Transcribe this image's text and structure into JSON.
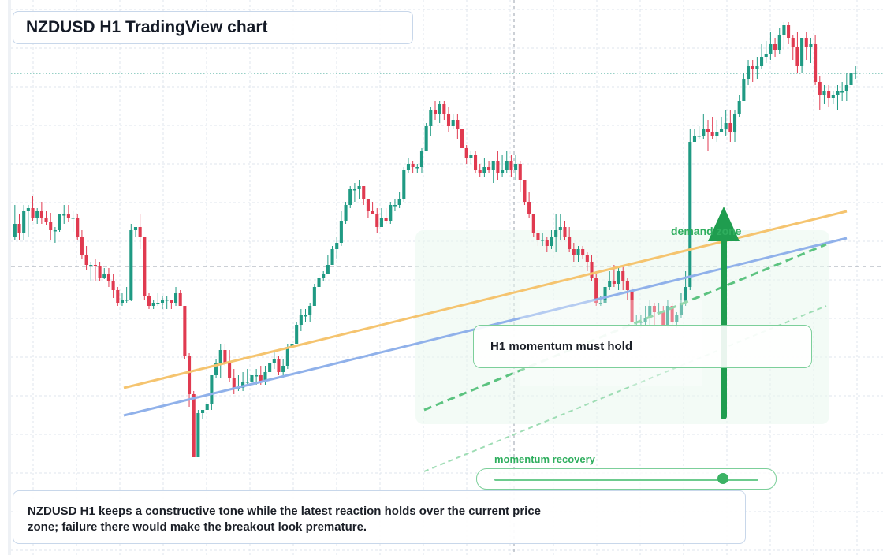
{
  "title": "NZDUSD H1 TradingView chart",
  "annotations": {
    "zone_note": "H1 momentum must hold",
    "demand_label": "demand zone",
    "momentum_label": "momentum recovery",
    "momentum_level": 0.86,
    "caption": "NZDUSD H1 keeps a constructive tone while the latest reaction holds over the current price zone; failure there would make the breakout look premature."
  },
  "colors": {
    "up_candle": "#1f9a83",
    "down_candle": "#e03a50",
    "orange_line": "#f5c46f",
    "blue_line": "#90b1ea",
    "green_accent": "#2fae5e",
    "grid": "#dfe4ec"
  },
  "chart_data": {
    "type": "candlestick",
    "symbol": "NZDUSD",
    "timeframe": "H1",
    "candles": [
      [
        40,
        48,
        60,
        38
      ],
      [
        48,
        42,
        54,
        38
      ],
      [
        42,
        56,
        60,
        38
      ],
      [
        56,
        58,
        60,
        40
      ],
      [
        58,
        52,
        66,
        50
      ],
      [
        52,
        56,
        58,
        48
      ],
      [
        56,
        52,
        62,
        48
      ],
      [
        52,
        49,
        56,
        47
      ],
      [
        49,
        44,
        55,
        38
      ],
      [
        44,
        44,
        46,
        36
      ],
      [
        44,
        54,
        54,
        43
      ],
      [
        54,
        54,
        60,
        48
      ],
      [
        54,
        52,
        60,
        49
      ],
      [
        52,
        52,
        56,
        43
      ],
      [
        52,
        40,
        54,
        38
      ],
      [
        40,
        28,
        44,
        26
      ],
      [
        28,
        22,
        34,
        19
      ],
      [
        22,
        22,
        24,
        12
      ],
      [
        22,
        21,
        26,
        12
      ],
      [
        21,
        14,
        24,
        12
      ],
      [
        14,
        16,
        20,
        13
      ],
      [
        16,
        12,
        20,
        8
      ],
      [
        12,
        6,
        16,
        1
      ],
      [
        6,
        -2,
        8,
        -4
      ],
      [
        -2,
        0,
        4,
        -4
      ],
      [
        0,
        0,
        8,
        -2
      ],
      [
        0,
        44,
        48,
        -1
      ],
      [
        44,
        46,
        46,
        40
      ],
      [
        46,
        40,
        54,
        32
      ],
      [
        40,
        2,
        40,
        0
      ],
      [
        2,
        -4,
        4,
        -6
      ],
      [
        -4,
        -2,
        0,
        -6
      ],
      [
        -2,
        -2,
        4,
        -4
      ],
      [
        -2,
        0,
        2,
        -6
      ],
      [
        0,
        0,
        2,
        -6
      ],
      [
        0,
        -2,
        0,
        -6
      ],
      [
        -2,
        4,
        8,
        -4
      ],
      [
        4,
        -4,
        6,
        -4
      ],
      [
        -4,
        -36,
        -4,
        -38
      ],
      [
        -36,
        -60,
        -34,
        -68
      ],
      [
        -60,
        -100,
        -58,
        -100
      ],
      [
        -100,
        -72,
        -70,
        -80
      ],
      [
        -72,
        -70,
        -70,
        -76
      ],
      [
        -70,
        -66,
        -66,
        -70
      ],
      [
        -66,
        -48,
        -48,
        -70
      ],
      [
        -48,
        -40,
        -38,
        -50
      ],
      [
        -40,
        -32,
        -28,
        -50
      ],
      [
        -32,
        -40,
        -28,
        -42
      ],
      [
        -40,
        -50,
        -32,
        -52
      ],
      [
        -50,
        -56,
        -44,
        -60
      ],
      [
        -56,
        -56,
        -48,
        -58
      ],
      [
        -56,
        -52,
        -46,
        -58
      ],
      [
        -52,
        -52,
        -44,
        -54
      ],
      [
        -52,
        -48,
        -48,
        -52
      ],
      [
        -48,
        -48,
        -44,
        -54
      ],
      [
        -48,
        -52,
        -42,
        -54
      ],
      [
        -52,
        -46,
        -42,
        -54
      ],
      [
        -46,
        -40,
        -40,
        -46
      ],
      [
        -40,
        -38,
        -32,
        -44
      ],
      [
        -38,
        -46,
        -36,
        -48
      ],
      [
        -46,
        -42,
        -38,
        -50
      ],
      [
        -42,
        -30,
        -28,
        -44
      ],
      [
        -30,
        -28,
        -24,
        -32
      ],
      [
        -28,
        -16,
        -14,
        -28
      ],
      [
        -16,
        -10,
        -6,
        -20
      ],
      [
        -10,
        -10,
        -6,
        -14
      ],
      [
        -10,
        -4,
        -2,
        -14
      ],
      [
        -4,
        8,
        10,
        -4
      ],
      [
        8,
        14,
        16,
        8
      ],
      [
        14,
        16,
        18,
        12
      ],
      [
        16,
        22,
        28,
        16
      ],
      [
        22,
        32,
        34,
        22
      ],
      [
        32,
        36,
        40,
        26
      ],
      [
        36,
        50,
        56,
        34
      ],
      [
        50,
        60,
        62,
        48
      ],
      [
        60,
        70,
        72,
        58
      ],
      [
        70,
        70,
        74,
        62
      ],
      [
        70,
        72,
        76,
        64
      ],
      [
        72,
        64,
        72,
        60
      ],
      [
        64,
        56,
        64,
        52
      ],
      [
        56,
        54,
        62,
        54
      ],
      [
        54,
        46,
        58,
        42
      ],
      [
        46,
        52,
        58,
        46
      ],
      [
        52,
        50,
        58,
        48
      ],
      [
        50,
        60,
        62,
        48
      ],
      [
        60,
        60,
        64,
        56
      ],
      [
        60,
        64,
        68,
        58
      ],
      [
        64,
        82,
        84,
        62
      ],
      [
        82,
        86,
        90,
        80
      ],
      [
        86,
        84,
        88,
        80
      ],
      [
        84,
        84,
        86,
        80
      ],
      [
        84,
        94,
        96,
        80
      ],
      [
        94,
        110,
        112,
        94
      ],
      [
        110,
        120,
        122,
        104
      ],
      [
        120,
        118,
        126,
        114
      ],
      [
        118,
        124,
        126,
        112
      ],
      [
        124,
        118,
        126,
        114
      ],
      [
        118,
        110,
        122,
        106
      ],
      [
        110,
        114,
        118,
        108
      ],
      [
        114,
        108,
        118,
        102
      ],
      [
        108,
        96,
        108,
        96
      ],
      [
        96,
        90,
        98,
        86
      ],
      [
        90,
        92,
        94,
        86
      ],
      [
        92,
        82,
        94,
        80
      ],
      [
        82,
        80,
        86,
        78
      ],
      [
        80,
        84,
        90,
        78
      ],
      [
        84,
        82,
        88,
        80
      ],
      [
        82,
        88,
        88,
        74
      ],
      [
        88,
        80,
        94,
        76
      ],
      [
        80,
        82,
        92,
        78
      ],
      [
        82,
        88,
        94,
        80
      ],
      [
        88,
        82,
        92,
        78
      ],
      [
        82,
        86,
        92,
        76
      ],
      [
        86,
        76,
        88,
        68
      ],
      [
        76,
        62,
        76,
        60
      ],
      [
        62,
        54,
        68,
        52
      ],
      [
        54,
        42,
        54,
        40
      ],
      [
        42,
        38,
        44,
        34
      ],
      [
        38,
        38,
        42,
        34
      ],
      [
        38,
        34,
        40,
        30
      ],
      [
        34,
        40,
        44,
        32
      ],
      [
        40,
        44,
        54,
        30
      ],
      [
        44,
        46,
        54,
        38
      ],
      [
        46,
        40,
        50,
        38
      ],
      [
        40,
        32,
        46,
        30
      ],
      [
        32,
        28,
        36,
        24
      ],
      [
        28,
        32,
        34,
        24
      ],
      [
        32,
        28,
        34,
        26
      ],
      [
        28,
        24,
        30,
        18
      ],
      [
        24,
        14,
        28,
        12
      ],
      [
        14,
        -2,
        18,
        -4
      ],
      [
        -2,
        -2,
        2,
        -4
      ],
      [
        -2,
        8,
        10,
        -2
      ],
      [
        8,
        12,
        18,
        6
      ],
      [
        12,
        10,
        22,
        8
      ],
      [
        10,
        18,
        20,
        6
      ],
      [
        18,
        12,
        22,
        6
      ],
      [
        12,
        6,
        14,
        0
      ],
      [
        6,
        -14,
        8,
        -14
      ],
      [
        -14,
        -14,
        -10,
        -16
      ],
      [
        -14,
        -14,
        -10,
        -18
      ],
      [
        -14,
        -12,
        -4,
        -16
      ],
      [
        -12,
        -4,
        0,
        -16
      ],
      [
        -4,
        -8,
        -2,
        -16
      ],
      [
        -8,
        -8,
        -2,
        -10
      ],
      [
        -8,
        -16,
        -4,
        -16
      ],
      [
        -16,
        -4,
        0,
        -18
      ],
      [
        -4,
        -14,
        -2,
        -16
      ],
      [
        -14,
        -10,
        -8,
        -18
      ],
      [
        -10,
        -2,
        4,
        -12
      ],
      [
        -2,
        8,
        18,
        -4
      ],
      [
        8,
        100,
        108,
        6
      ],
      [
        100,
        104,
        108,
        100
      ],
      [
        104,
        104,
        110,
        102
      ],
      [
        104,
        108,
        118,
        102
      ],
      [
        108,
        106,
        114,
        94
      ],
      [
        106,
        104,
        116,
        102
      ],
      [
        104,
        106,
        114,
        100
      ],
      [
        106,
        108,
        116,
        106
      ],
      [
        108,
        112,
        120,
        104
      ],
      [
        112,
        106,
        120,
        100
      ],
      [
        106,
        118,
        120,
        100
      ],
      [
        118,
        126,
        130,
        116
      ],
      [
        126,
        140,
        144,
        126
      ],
      [
        140,
        148,
        152,
        136
      ],
      [
        148,
        146,
        152,
        138
      ],
      [
        146,
        148,
        154,
        140
      ],
      [
        148,
        154,
        162,
        146
      ],
      [
        154,
        156,
        164,
        150
      ],
      [
        156,
        162,
        170,
        152
      ],
      [
        162,
        158,
        166,
        154
      ],
      [
        158,
        168,
        172,
        156
      ],
      [
        168,
        174,
        176,
        158
      ],
      [
        174,
        166,
        176,
        162
      ],
      [
        166,
        160,
        168,
        152
      ],
      [
        160,
        148,
        170,
        144
      ],
      [
        148,
        166,
        166,
        144
      ],
      [
        166,
        160,
        170,
        152
      ],
      [
        160,
        162,
        166,
        150
      ],
      [
        162,
        138,
        168,
        136
      ],
      [
        138,
        130,
        142,
        120
      ],
      [
        130,
        132,
        136,
        124
      ],
      [
        132,
        128,
        136,
        122
      ],
      [
        128,
        130,
        132,
        124
      ],
      [
        130,
        132,
        136,
        120
      ],
      [
        132,
        132,
        138,
        126
      ],
      [
        132,
        136,
        144,
        126
      ],
      [
        136,
        144,
        148,
        134
      ],
      [
        144,
        144,
        148,
        140
      ]
    ],
    "ylim": [
      -110,
      180
    ],
    "horizontal_levels": [
      150,
      88
    ],
    "trendlines": [
      "orange",
      "blue"
    ],
    "grid": true
  }
}
